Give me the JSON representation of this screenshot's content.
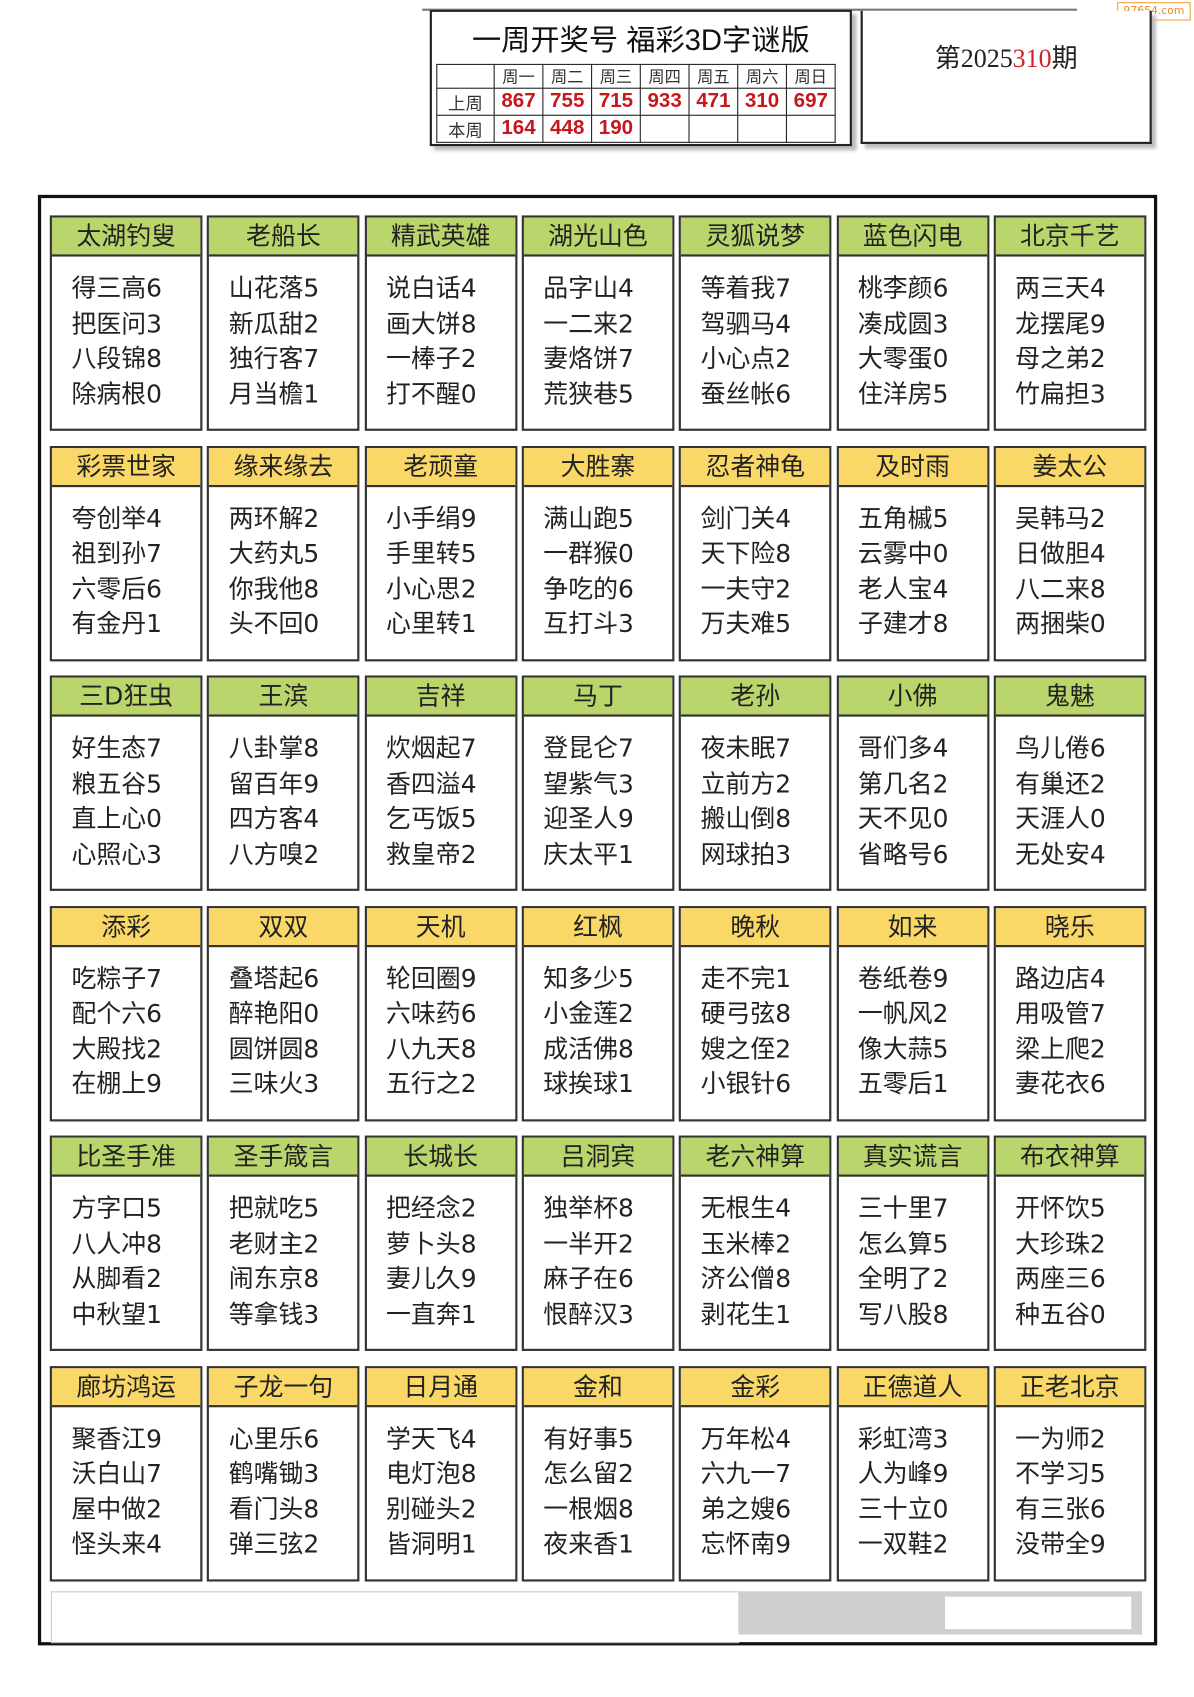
{
  "watermark": "97654.com",
  "header": {
    "title": "一周开奖号  福彩3D字谜版",
    "days": [
      "周一",
      "周二",
      "周三",
      "周四",
      "周五",
      "周六",
      "周日"
    ],
    "last_week_label": "上周",
    "this_week_label": "本周",
    "last_week": [
      "867",
      "755",
      "715",
      "933",
      "471",
      "310",
      "697"
    ],
    "this_week": [
      "164",
      "448",
      "190",
      "",
      "",
      "",
      ""
    ]
  },
  "issue": {
    "prefix": "第",
    "year": "2025",
    "number": "310",
    "suffix": "期"
  },
  "colors": {
    "green_header": "#b9d56b",
    "yellow_header": "#fad868",
    "number_red": "#c8161d"
  },
  "rows": [
    {
      "color": "green",
      "cards": [
        {
          "title": "太湖钓叟",
          "lines": [
            "得三高6",
            "把医问3",
            "八段锦8",
            "除病根0"
          ]
        },
        {
          "title": "老船长",
          "lines": [
            "山花落5",
            "新瓜甜2",
            "独行客7",
            "月当檐1"
          ]
        },
        {
          "title": "精武英雄",
          "lines": [
            "说白话4",
            "画大饼8",
            "一棒子2",
            "打不醒0"
          ]
        },
        {
          "title": "湖光山色",
          "lines": [
            "品字山4",
            "一二来2",
            "妻烙饼7",
            "荒狭巷5"
          ]
        },
        {
          "title": "灵狐说梦",
          "lines": [
            "等着我7",
            "驾驷马4",
            "小心点2",
            "蚕丝帐6"
          ]
        },
        {
          "title": "蓝色闪电",
          "lines": [
            "桃李颜6",
            "凑成圆3",
            "大零蛋0",
            "住洋房5"
          ]
        },
        {
          "title": "北京千艺",
          "lines": [
            "两三天4",
            "龙摆尾9",
            "母之弟2",
            "竹扁担3"
          ]
        }
      ]
    },
    {
      "color": "yellow",
      "cards": [
        {
          "title": "彩票世家",
          "lines": [
            "夸创举4",
            "祖到孙7",
            "六零后6",
            "有金丹1"
          ]
        },
        {
          "title": "缘来缘去",
          "lines": [
            "两环解2",
            "大药丸5",
            "你我他8",
            "头不回0"
          ]
        },
        {
          "title": "老顽童",
          "lines": [
            "小手绢9",
            "手里转5",
            "小心思2",
            "心里转1"
          ]
        },
        {
          "title": "大胜寨",
          "lines": [
            "满山跑5",
            "一群猴0",
            "争吃的6",
            "互打斗3"
          ]
        },
        {
          "title": "忍者神龟",
          "lines": [
            "剑门关4",
            "天下险8",
            "一夫守2",
            "万夫难5"
          ]
        },
        {
          "title": "及时雨",
          "lines": [
            "五角槭5",
            "云雾中0",
            "老人宝4",
            "子建才8"
          ]
        },
        {
          "title": "姜太公",
          "lines": [
            "吴韩马2",
            "日做胆4",
            "八二来8",
            "两捆柴0"
          ]
        }
      ]
    },
    {
      "color": "green",
      "cards": [
        {
          "title": "三D狂虫",
          "lines": [
            "好生态7",
            "粮五谷5",
            "直上心0",
            "心照心3"
          ]
        },
        {
          "title": "王滨",
          "lines": [
            "八卦掌8",
            "留百年9",
            "四方客4",
            "八方嗅2"
          ]
        },
        {
          "title": "吉祥",
          "lines": [
            "炊烟起7",
            "香四溢4",
            "乞丐饭5",
            "救皇帝2"
          ]
        },
        {
          "title": "马丁",
          "lines": [
            "登昆仑7",
            "望紫气3",
            "迎圣人9",
            "庆太平1"
          ]
        },
        {
          "title": "老孙",
          "lines": [
            "夜未眠7",
            "立前方2",
            "搬山倒8",
            "网球拍3"
          ]
        },
        {
          "title": "小佛",
          "lines": [
            "哥们多4",
            "第几名2",
            "天不见0",
            "省略号6"
          ]
        },
        {
          "title": "鬼魅",
          "lines": [
            "鸟儿倦6",
            "有巢还2",
            "天涯人0",
            "无处安4"
          ]
        }
      ]
    },
    {
      "color": "yellow",
      "cards": [
        {
          "title": "添彩",
          "lines": [
            "吃粽子7",
            "配个六6",
            "大殿找2",
            "在棚上9"
          ]
        },
        {
          "title": "双双",
          "lines": [
            "叠塔起6",
            "醉艳阳0",
            "圆饼圆8",
            "三味火3"
          ]
        },
        {
          "title": "天机",
          "lines": [
            "轮回圈9",
            "六味药6",
            "八九天8",
            "五行之2"
          ]
        },
        {
          "title": "红枫",
          "lines": [
            "知多少5",
            "小金莲2",
            "成活佛8",
            "球挨球1"
          ]
        },
        {
          "title": "晚秋",
          "lines": [
            "走不完1",
            "硬弓弦8",
            "嫂之侄2",
            "小银针6"
          ]
        },
        {
          "title": "如来",
          "lines": [
            "卷纸卷9",
            "一帆风2",
            "像大蒜5",
            "五零后1"
          ]
        },
        {
          "title": "晓乐",
          "lines": [
            "路边店4",
            "用吸管7",
            "梁上爬2",
            "妻花衣6"
          ]
        }
      ]
    },
    {
      "color": "green",
      "cards": [
        {
          "title": "比圣手准",
          "lines": [
            "方字口5",
            "八人冲8",
            "从脚看2",
            "中秋望1"
          ]
        },
        {
          "title": "圣手箴言",
          "lines": [
            "把就吃5",
            "老财主2",
            "闹东京8",
            "等拿钱3"
          ]
        },
        {
          "title": "长城长",
          "lines": [
            "把经念2",
            "萝卜头8",
            "妻儿久9",
            "一直奔1"
          ]
        },
        {
          "title": "吕洞宾",
          "lines": [
            "独举杯8",
            "一半开2",
            "麻子在6",
            "恨醉汉3"
          ]
        },
        {
          "title": "老六神算",
          "lines": [
            "无根生4",
            "玉米棒2",
            "济公僧8",
            "剥花生1"
          ]
        },
        {
          "title": "真实谎言",
          "lines": [
            "三十里7",
            "怎么算5",
            "全明了2",
            "写八股8"
          ]
        },
        {
          "title": "布衣神算",
          "lines": [
            "开怀饮5",
            "大珍珠2",
            "两座三6",
            "种五谷0"
          ]
        }
      ]
    },
    {
      "color": "yellow",
      "cards": [
        {
          "title": "廊坊鸿运",
          "lines": [
            "聚香江9",
            "沃白山7",
            "屋中做2",
            "怪头来4"
          ]
        },
        {
          "title": "子龙一句",
          "lines": [
            "心里乐6",
            "鹤嘴锄3",
            "看门头8",
            "弹三弦2"
          ]
        },
        {
          "title": "日月通",
          "lines": [
            "学天飞4",
            "电灯泡8",
            "别碰头2",
            "皆洞明1"
          ]
        },
        {
          "title": "金和",
          "lines": [
            "有好事5",
            "怎么留2",
            "一根烟8",
            "夜来香1"
          ]
        },
        {
          "title": "金彩",
          "lines": [
            "万年松4",
            "六九一7",
            "弟之嫂6",
            "忘怀南9"
          ]
        },
        {
          "title": "正德道人",
          "lines": [
            "彩虹湾3",
            "人为峰9",
            "三十立0",
            "一双鞋2"
          ]
        },
        {
          "title": "正老北京",
          "lines": [
            "一为师2",
            "不学习5",
            "有三张6",
            "没带全9"
          ]
        }
      ]
    }
  ]
}
